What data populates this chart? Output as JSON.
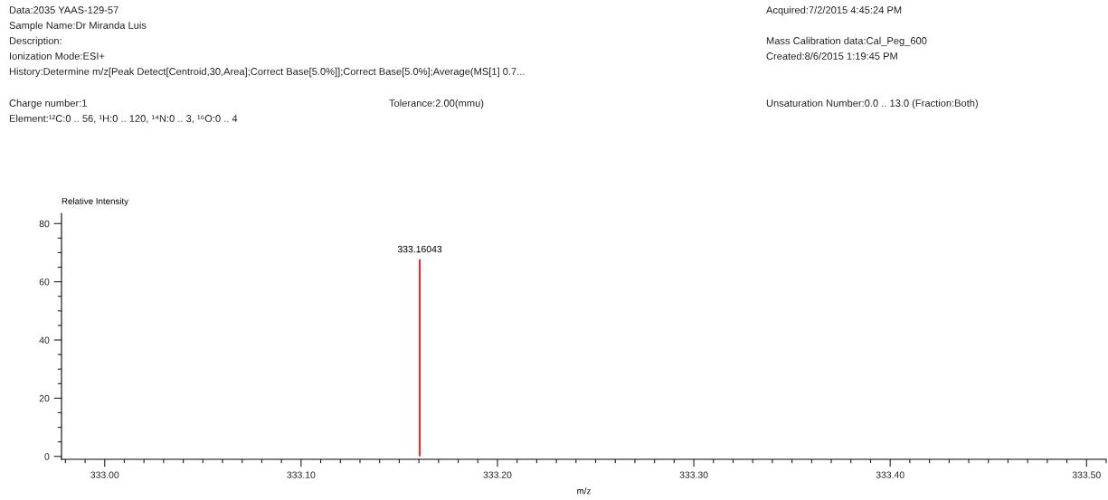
{
  "chart_data": {
    "type": "bar",
    "x": [
      333.16043
    ],
    "values": [
      67.7
    ],
    "color": "#ff0000",
    "xlabel": "m/z",
    "ylabel": "Relative Intensity",
    "xlim": [
      332.978,
      333.51
    ],
    "ylim": [
      -1,
      83.5
    ],
    "xticks": [
      {
        "value": 333.0,
        "label": "333.00"
      },
      {
        "value": 333.1,
        "label": "333.10"
      },
      {
        "value": 333.2,
        "label": "333.20"
      },
      {
        "value": 333.3,
        "label": "333.30"
      },
      {
        "value": 333.4,
        "label": "333.40"
      },
      {
        "value": 333.5,
        "label": "333.50"
      }
    ],
    "yticks": [
      0,
      20,
      40,
      60,
      80
    ],
    "grid": false,
    "annotations": [
      {
        "text": "333.16043",
        "x": 333.16043,
        "y": 67.7
      },
      "Data:2035 YAAS-129-57",
      "Sample Name:Dr Miranda Luis",
      "Description:",
      "Ionization Mode:ESI+",
      "History:Determine m/z[Peak Detect[Centroid,30,Area];Correct Base[5.0%]];Correct Base[5.0%];Average(MS[1] 0.7...",
      "Charge number:1",
      "Element:¹²C:0 .. 56, ¹H:0 .. 120, ¹⁴N:0 .. 3, ¹⁶O:0 .. 4",
      "Tolerance:2.00(mmu)",
      "Acquired:7/2/2015 4:45:24 PM",
      "Mass Calibration data:Cal_Peg_600",
      "Created:8/6/2015 1:19:45 PM",
      "Unsaturation Number:0.0 .. 13.0 (Fraction:Both)"
    ]
  }
}
